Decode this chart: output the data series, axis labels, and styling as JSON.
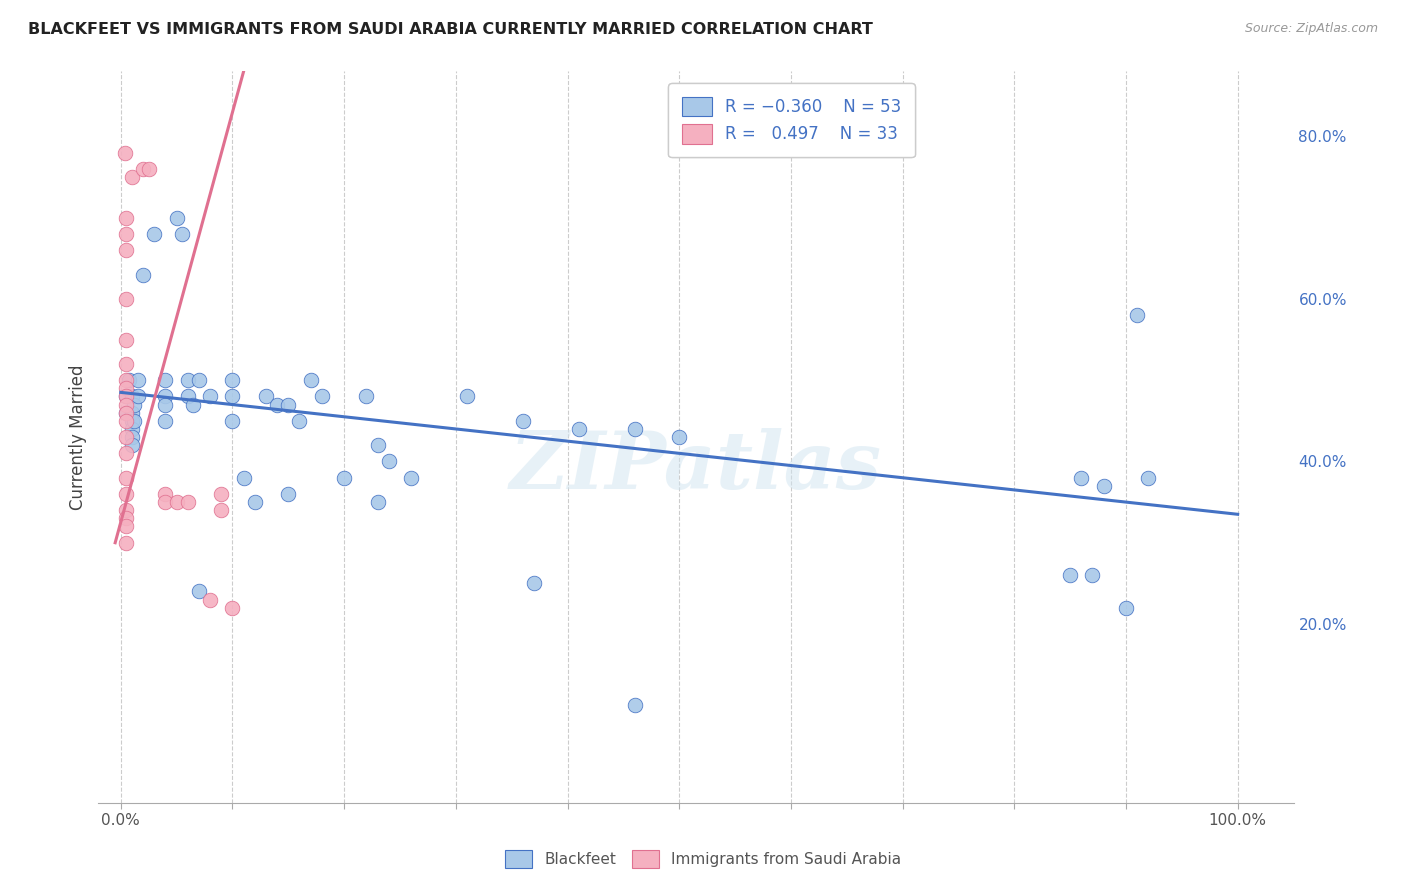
{
  "title": "BLACKFEET VS IMMIGRANTS FROM SAUDI ARABIA CURRENTLY MARRIED CORRELATION CHART",
  "source": "Source: ZipAtlas.com",
  "ylabel": "Currently Married",
  "ylabel_right_ticks": [
    "20.0%",
    "40.0%",
    "60.0%",
    "80.0%"
  ],
  "ylabel_right_vals": [
    0.2,
    0.4,
    0.6,
    0.8
  ],
  "color_blue": "#a8c8e8",
  "color_pink": "#f5b0c0",
  "trendline_blue": "#4472c4",
  "trendline_pink": "#e07090",
  "watermark": "ZIPatlas",
  "blue_scatter": [
    [
      0.005,
      0.48
    ],
    [
      0.005,
      0.46
    ],
    [
      0.007,
      0.5
    ],
    [
      0.01,
      0.48
    ],
    [
      0.01,
      0.46
    ],
    [
      0.01,
      0.45
    ],
    [
      0.01,
      0.44
    ],
    [
      0.01,
      0.43
    ],
    [
      0.01,
      0.42
    ],
    [
      0.012,
      0.47
    ],
    [
      0.012,
      0.45
    ],
    [
      0.015,
      0.5
    ],
    [
      0.015,
      0.48
    ],
    [
      0.02,
      0.63
    ],
    [
      0.03,
      0.68
    ],
    [
      0.04,
      0.5
    ],
    [
      0.04,
      0.48
    ],
    [
      0.04,
      0.47
    ],
    [
      0.04,
      0.45
    ],
    [
      0.05,
      0.7
    ],
    [
      0.055,
      0.68
    ],
    [
      0.06,
      0.5
    ],
    [
      0.06,
      0.48
    ],
    [
      0.065,
      0.47
    ],
    [
      0.07,
      0.5
    ],
    [
      0.08,
      0.48
    ],
    [
      0.1,
      0.5
    ],
    [
      0.1,
      0.48
    ],
    [
      0.1,
      0.45
    ],
    [
      0.11,
      0.38
    ],
    [
      0.12,
      0.35
    ],
    [
      0.13,
      0.48
    ],
    [
      0.14,
      0.47
    ],
    [
      0.15,
      0.47
    ],
    [
      0.16,
      0.45
    ],
    [
      0.17,
      0.5
    ],
    [
      0.18,
      0.48
    ],
    [
      0.22,
      0.48
    ],
    [
      0.23,
      0.42
    ],
    [
      0.24,
      0.4
    ],
    [
      0.26,
      0.38
    ],
    [
      0.07,
      0.24
    ],
    [
      0.15,
      0.36
    ],
    [
      0.2,
      0.38
    ],
    [
      0.23,
      0.35
    ],
    [
      0.31,
      0.48
    ],
    [
      0.36,
      0.45
    ],
    [
      0.37,
      0.25
    ],
    [
      0.41,
      0.44
    ],
    [
      0.46,
      0.44
    ],
    [
      0.5,
      0.43
    ],
    [
      0.46,
      0.1
    ],
    [
      0.86,
      0.38
    ],
    [
      0.88,
      0.37
    ],
    [
      0.85,
      0.26
    ],
    [
      0.87,
      0.26
    ],
    [
      0.9,
      0.22
    ],
    [
      0.92,
      0.38
    ],
    [
      0.91,
      0.58
    ]
  ],
  "pink_scatter": [
    [
      0.004,
      0.78
    ],
    [
      0.005,
      0.7
    ],
    [
      0.005,
      0.68
    ],
    [
      0.005,
      0.66
    ],
    [
      0.005,
      0.55
    ],
    [
      0.005,
      0.52
    ],
    [
      0.005,
      0.5
    ],
    [
      0.005,
      0.49
    ],
    [
      0.005,
      0.48
    ],
    [
      0.005,
      0.47
    ],
    [
      0.005,
      0.46
    ],
    [
      0.005,
      0.45
    ],
    [
      0.005,
      0.43
    ],
    [
      0.005,
      0.41
    ],
    [
      0.005,
      0.38
    ],
    [
      0.005,
      0.36
    ],
    [
      0.005,
      0.34
    ],
    [
      0.005,
      0.33
    ],
    [
      0.005,
      0.32
    ],
    [
      0.005,
      0.3
    ],
    [
      0.01,
      0.75
    ],
    [
      0.02,
      0.76
    ],
    [
      0.025,
      0.76
    ],
    [
      0.04,
      0.36
    ],
    [
      0.04,
      0.35
    ],
    [
      0.05,
      0.35
    ],
    [
      0.06,
      0.35
    ],
    [
      0.08,
      0.23
    ],
    [
      0.09,
      0.36
    ],
    [
      0.09,
      0.34
    ],
    [
      0.1,
      0.22
    ],
    [
      0.005,
      0.6
    ]
  ],
  "blue_trend_x": [
    0.0,
    1.0
  ],
  "blue_trend_y": [
    0.485,
    0.335
  ],
  "pink_trend_x": [
    -0.005,
    0.11
  ],
  "pink_trend_y": [
    0.3,
    0.88
  ],
  "xmin": -0.02,
  "xmax": 1.05,
  "ymin": -0.02,
  "ymax": 0.88
}
